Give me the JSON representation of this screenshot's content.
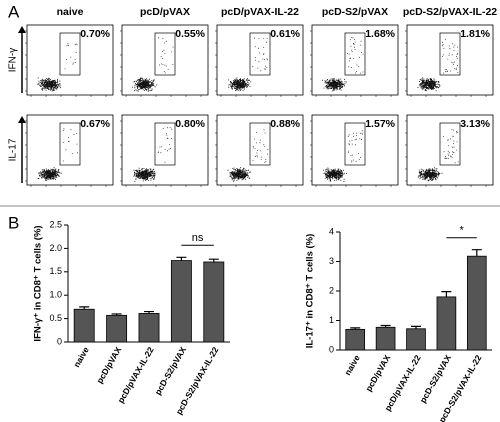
{
  "panel_a": {
    "label": "A",
    "columns": [
      "naive",
      "pcD/pVAX",
      "pcD/pVAX-IL-22",
      "pcD-S2/pVAX",
      "pcD-S2/pVAX-IL-22"
    ],
    "rows": [
      {
        "label": "IFN-γ",
        "percentages": [
          "0.70%",
          "0.55%",
          "0.61%",
          "1.68%",
          "1.81%"
        ]
      },
      {
        "label": "IL-17",
        "percentages": [
          "0.67%",
          "0.80%",
          "0.88%",
          "1.57%",
          "3.13%"
        ]
      }
    ]
  },
  "panel_b": {
    "label": "B"
  },
  "chart_data": [
    {
      "type": "bar",
      "ylabel": "IFN-γ⁺ in CD8⁺ T cells (%)",
      "categories": [
        "naive",
        "pcD/pVAX",
        "pcD/pVAX-IL-22",
        "pcD-S2/pVAX",
        "pcD-S2/pVAX-IL-22"
      ],
      "values": [
        0.7,
        0.57,
        0.61,
        1.74,
        1.71
      ],
      "errors": [
        0.05,
        0.03,
        0.04,
        0.07,
        0.06
      ],
      "color": "#555555",
      "ylim": [
        0,
        2.5
      ],
      "yticks": [
        0,
        0.5,
        {
          "value": 1,
          "label": "1.0"
        },
        1.5,
        {
          "value": 2,
          "label": "2.0"
        },
        2.5
      ],
      "annotation": "ns"
    },
    {
      "type": "bar",
      "ylabel": "IL-17⁺ in CD8⁺ T cells (%)",
      "categories": [
        "naive",
        "pcD/pVAX",
        "pcD/pVAX-IL-22",
        "pcD-S2/pVAX",
        "pcD-S2/pVAX-IL-22"
      ],
      "values": [
        0.7,
        0.77,
        0.72,
        1.8,
        3.18
      ],
      "errors": [
        0.05,
        0.06,
        0.08,
        0.18,
        0.22
      ],
      "color": "#555555",
      "ylim": [
        0,
        4
      ],
      "yticks": [
        0,
        1,
        2,
        3,
        4
      ],
      "annotation": "*"
    }
  ]
}
